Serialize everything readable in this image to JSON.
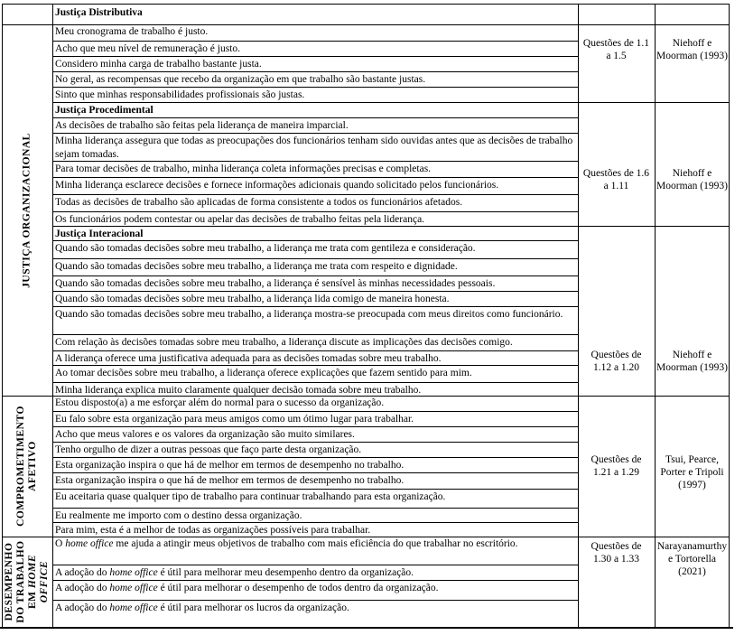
{
  "header": {
    "title": "Justiça Distributiva",
    "questions": "",
    "source": ""
  },
  "sections": [
    {
      "label_lines": [
        "JUSTIÇA ORGANIZACIONAL"
      ],
      "groups": [
        {
          "heading": null,
          "items": [
            "Meu cronograma de trabalho é justo.",
            "Acho que meu nível de remuneração é justo.",
            "Considero minha carga de trabalho bastante justa.",
            "No geral, as recompensas que recebo da organização em que trabalho são bastante justas.",
            "Sinto que minhas responsabilidades profissionais são justas."
          ],
          "questions": "Questões de 1.1 a 1.5",
          "source": "Niehoff e Moorman (1993)"
        },
        {
          "heading": "Justiça Procedimental",
          "items": [
            "As decisões de trabalho são feitas pela liderança de maneira imparcial.",
            "Minha liderança assegura que todas as preocupações dos funcionários tenham sido ouvidas antes que as decisões de trabalho sejam tomadas.",
            "Para tomar decisões de trabalho, minha liderança coleta informações precisas e completas.",
            "Minha liderança esclarece decisões e fornece informações adicionais quando solicitado pelos funcionários.",
            "Todas as decisões de trabalho são aplicadas de forma consistente a todos os funcionários afetados.",
            "Os funcionários podem contestar ou apelar das decisões de trabalho feitas pela liderança."
          ],
          "questions": "Questões de 1.6 a 1.11",
          "source": "Niehoff e Moorman (1993)"
        },
        {
          "heading": "Justiça Interacional",
          "items": [
            "Quando são tomadas decisões sobre meu trabalho, a liderança me trata com gentileza e consideração.",
            "Quando são tomadas decisões sobre meu trabalho, a liderança me trata com respeito e dignidade.",
            "Quando são tomadas decisões sobre meu trabalho, a liderança é sensível às minhas necessidades pessoais.",
            "Quando são tomadas decisões sobre meu trabalho, a liderança lida comigo de maneira honesta.",
            "Quando são tomadas decisões sobre meu trabalho, a liderança mostra-se preocupada com meus direitos como funcionário.",
            "Com relação às decisões tomadas sobre meu trabalho, a liderança discute as implicações das decisões comigo.",
            "A liderança oferece uma justificativa adequada para as decisões tomadas sobre meu trabalho.",
            "Ao tomar decisões sobre meu trabalho, a liderança oferece explicações que fazem sentido para mim.",
            "Minha liderança explica muito claramente qualquer decisão tomada sobre meu trabalho."
          ],
          "questions": "Questões de 1.12 a 1.20",
          "source": "Niehoff e Moorman (1993)"
        }
      ]
    },
    {
      "label_lines": [
        "COMPROMETIMENTO",
        "AFETIVO"
      ],
      "groups": [
        {
          "heading": null,
          "items": [
            "Estou disposto(a) a me esforçar além do normal para o sucesso da organização.",
            "Eu falo sobre esta organização para meus amigos como um ótimo lugar para trabalhar.",
            "Acho que meus valores e os valores da organização são muito similares.",
            "Tenho orgulho de dizer a outras pessoas que faço parte desta organização.",
            "Esta organização inspira o que há de melhor em termos de desempenho no trabalho.",
            "Esta organização inspira o que há de melhor em termos de desempenho no trabalho.",
            "Eu aceitaria quase qualquer tipo de trabalho para continuar trabalhando para esta organização.",
            "Eu realmente me importo com o destino dessa organização.",
            "Para mim, esta é a melhor de todas as organizações possíveis para trabalhar."
          ],
          "questions": "Questões de 1.21 a 1.29",
          "source": "Tsui, Pearce, Porter e Tripoli (1997)"
        }
      ]
    },
    {
      "label_lines": [
        "DESEMPENHO",
        "DO TRABALHO",
        "EM HOME",
        "OFFICE"
      ],
      "groups": [
        {
          "heading": null,
          "items": [
            "O home office me ajuda a atingir meus objetivos de trabalho com mais eficiência do que trabalhar no escritório.",
            "A adoção do home office é útil para melhorar meu desempenho dentro da organização.",
            "A adoção do home office é útil para melhorar o desempenho de todos dentro da organização.",
            "A adoção do home office é útil para melhorar os lucros da organização."
          ],
          "questions": "Questões de 1.30 a 1.33",
          "source": "Narayanamurthy e Tortorella (2021)"
        }
      ]
    }
  ]
}
